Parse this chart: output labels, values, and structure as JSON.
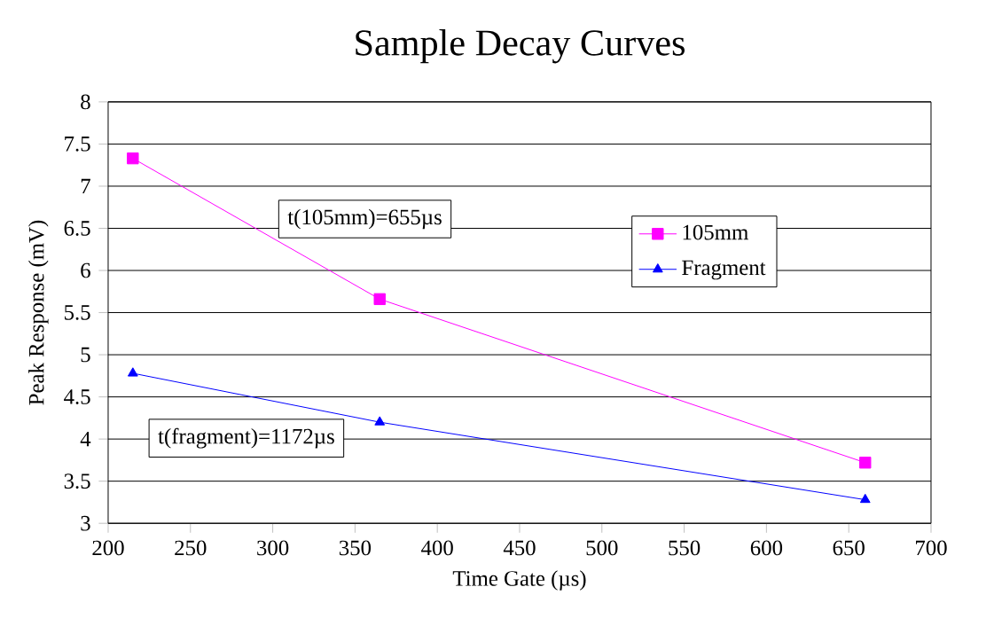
{
  "chart_data": {
    "type": "line",
    "title": "Sample Decay Curves",
    "xlabel": "Time Gate (µs)",
    "ylabel": "Peak Response (mV)",
    "xlim": [
      200,
      700
    ],
    "xticks": [
      200,
      250,
      300,
      350,
      400,
      450,
      500,
      550,
      600,
      650,
      700
    ],
    "ylim": [
      3,
      8
    ],
    "yticks": [
      3,
      3.5,
      4,
      4.5,
      5,
      5.5,
      6,
      6.5,
      7,
      7.5,
      8
    ],
    "grid": "y",
    "legend": "right",
    "annotations": [
      "t(105mm)=655µs",
      "t(fragment)=1172µs"
    ],
    "series": [
      {
        "name": "105mm",
        "color": "#ff00ff",
        "marker": "square",
        "x": [
          215,
          365,
          660
        ],
        "values": [
          7.33,
          5.66,
          3.72
        ]
      },
      {
        "name": "Fragment",
        "color": "#0000ff",
        "marker": "triangle",
        "x": [
          215,
          365,
          660
        ],
        "values": [
          4.78,
          4.2,
          3.28
        ]
      }
    ]
  }
}
